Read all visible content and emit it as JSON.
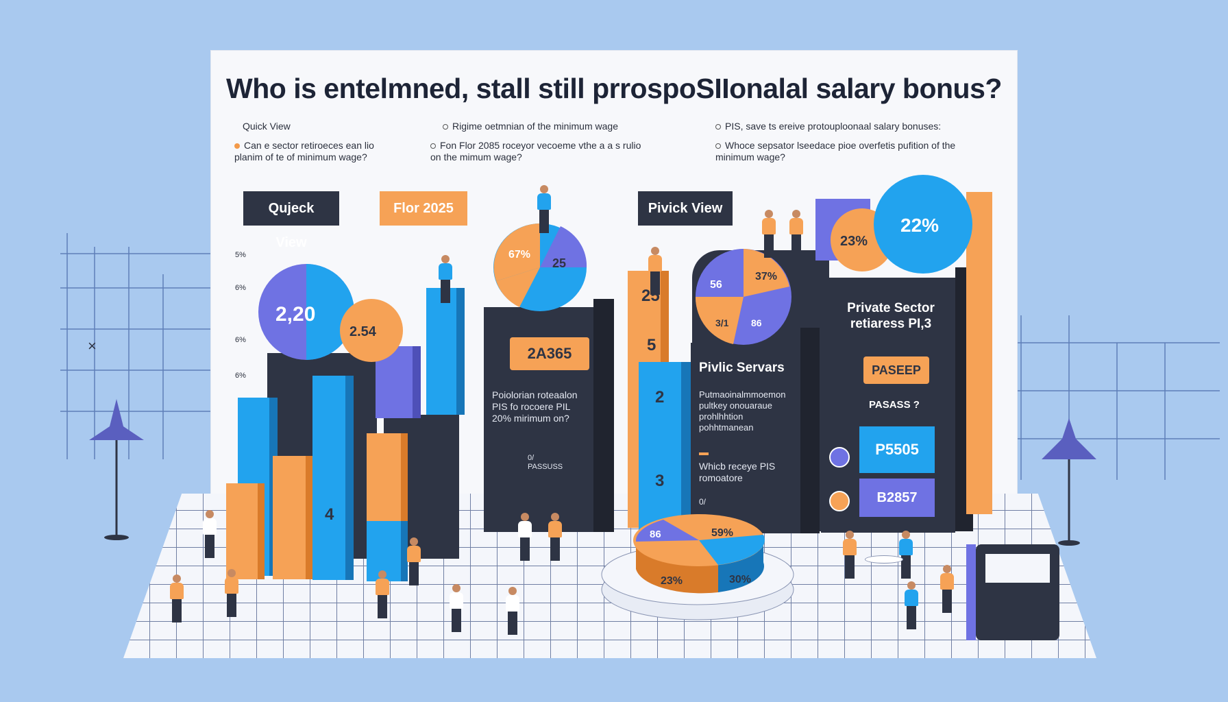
{
  "title": "Who is entelmned, stall still prrospoSIIonalal salary bonus?",
  "notes": {
    "left_1": "Quick View",
    "left_2": "Can e sector retiroeces ean lio planim of te of minimum wage?",
    "mid_1": "Rigime oetmnian of the minimum wage",
    "mid_2": "Fon Flor 2085 roceyor vecoeme vthe a a s rulio on the mimum wage?",
    "right_1": "PIS, save ts ereive protouploonaal salary bonuses:",
    "right_2": "Whoce sepsator lseedace pioe overfetis pufition of the minimum wage?"
  },
  "buttons": {
    "quick_view": "Qujeck View",
    "flor": "Flor 2025",
    "privick_view": "Pivick View"
  },
  "pies": {
    "left_big": "2,20",
    "left_small": "2.54",
    "center_a": "67%",
    "center_b": "25",
    "right_a": "56",
    "right_b": "37%",
    "right_c": "3/1",
    "right_d": "86",
    "top_orange": "23%",
    "top_blue": "22%",
    "floor_a": "86",
    "floor_b": "59%",
    "floor_c": "23%",
    "floor_d": "30%"
  },
  "bars": {
    "blue_mid": "4",
    "orange_num_1": "25",
    "orange_num_2": "5",
    "blue_num_1": "2",
    "blue_num_2": "3"
  },
  "panels": {
    "center_tag": "2A365",
    "center_text": "Poiolorian roteaalon PIS fo rocoere PIL 20% mirimum on?",
    "center_small": "0/ PASSUSS",
    "pivic_title": "Pivlic Servars",
    "pivic_text": "Putmaoinalmmoemon pultkey onouaraue prohlhhtion pohhtmanean",
    "pivic_question": "Whicb receye PIS romoatore",
    "pivic_small": "0/",
    "private_title": "Private Sector retiaress PI,3",
    "pasep": "PASEEP",
    "pasass": "PASASS ?",
    "p_a": "P5505",
    "p_b": "B2857"
  },
  "axis_ticks": [
    "5%",
    "6%",
    "6%",
    "6%"
  ],
  "colors": {
    "background": "#a9c9ef",
    "blue": "#22a3ee",
    "orange": "#f6a256",
    "purple": "#6f72e3",
    "dark": "#2e3444"
  }
}
